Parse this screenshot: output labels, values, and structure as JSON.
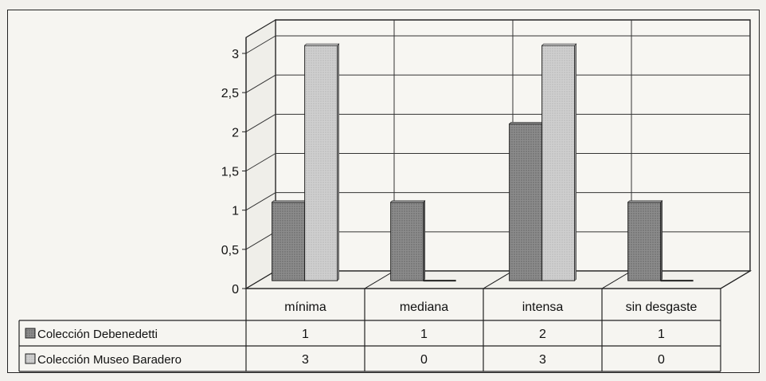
{
  "chart_data": {
    "type": "bar",
    "title": "",
    "xlabel": "",
    "ylabel": "",
    "ylim": [
      0,
      3
    ],
    "y_ticks": [
      "0",
      "0,5",
      "1",
      "1,5",
      "2",
      "2,5",
      "3"
    ],
    "categories": [
      "mínima",
      "mediana",
      "intensa",
      "sin desgaste"
    ],
    "series": [
      {
        "name": "Colección Debenedetti",
        "values": [
          1,
          1,
          2,
          1
        ],
        "display": [
          "1",
          "1",
          "2",
          "1"
        ],
        "color": "#8a8a8a"
      },
      {
        "name": "Colección Museo Baradero",
        "values": [
          3,
          0,
          3,
          0
        ],
        "display": [
          "3",
          "0",
          "3",
          "0"
        ],
        "color": "#c9c9c9"
      }
    ],
    "grid": true,
    "style": "3d-clustered-bar-with-data-table"
  }
}
